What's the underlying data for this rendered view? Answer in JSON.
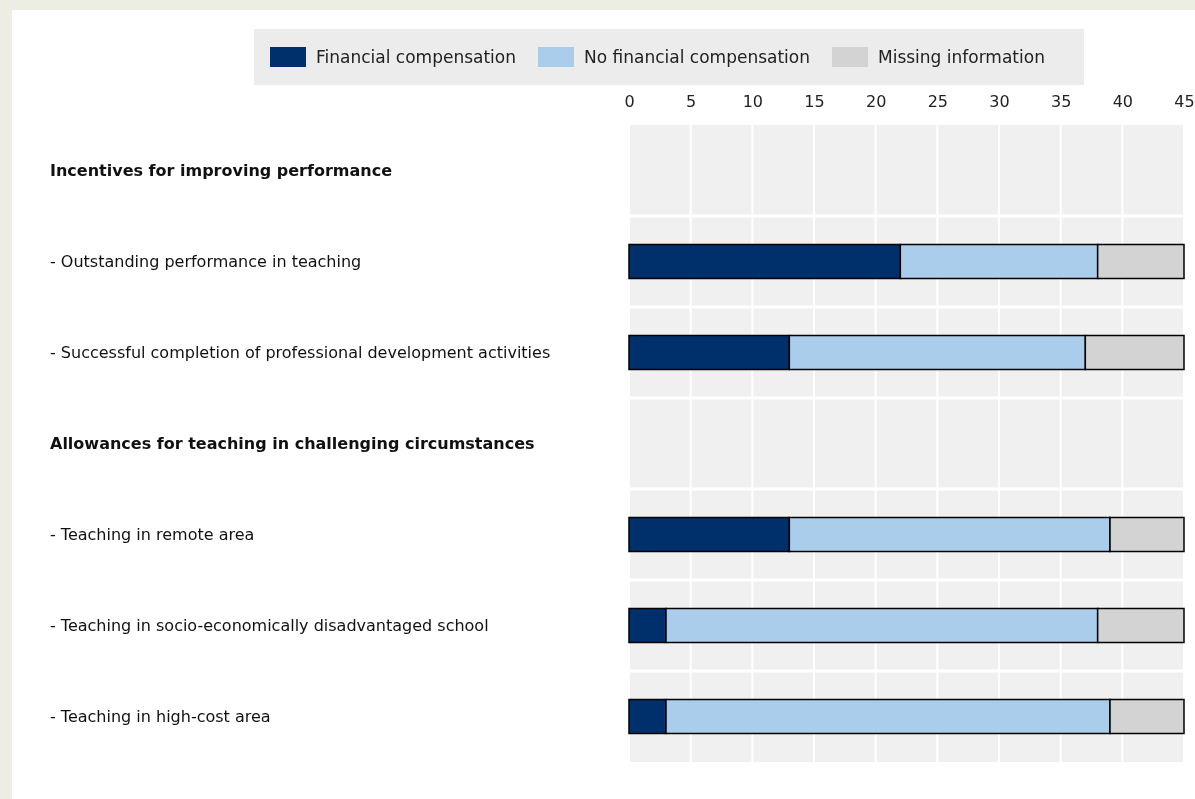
{
  "chart_data": {
    "type": "bar",
    "orientation": "horizontal",
    "stacked": true,
    "categories": [
      "Incentives for improving performance",
      "- Outstanding performance in teaching",
      "- Successful completion of professional development activities",
      "Allowances for teaching in challenging circumstances",
      "- Teaching in remote area",
      "- Teaching in socio-economically disadvantaged school",
      "- Teaching in high-cost area"
    ],
    "series": [
      {
        "name": "Financial compensation",
        "color": "#00306b",
        "values": [
          null,
          22,
          13,
          null,
          13,
          3,
          3
        ]
      },
      {
        "name": "No financial compensation",
        "color": "#abcdec",
        "values": [
          null,
          16,
          24,
          null,
          26,
          35,
          36
        ]
      },
      {
        "name": "Missing information",
        "color": "#d3d3d3",
        "values": [
          null,
          7,
          8,
          null,
          6,
          7,
          6
        ]
      }
    ],
    "xlim": [
      0,
      45
    ],
    "xticks": [
      0,
      5,
      10,
      15,
      20,
      25,
      30,
      35,
      40,
      45
    ],
    "grid": "x",
    "legend": "top"
  }
}
